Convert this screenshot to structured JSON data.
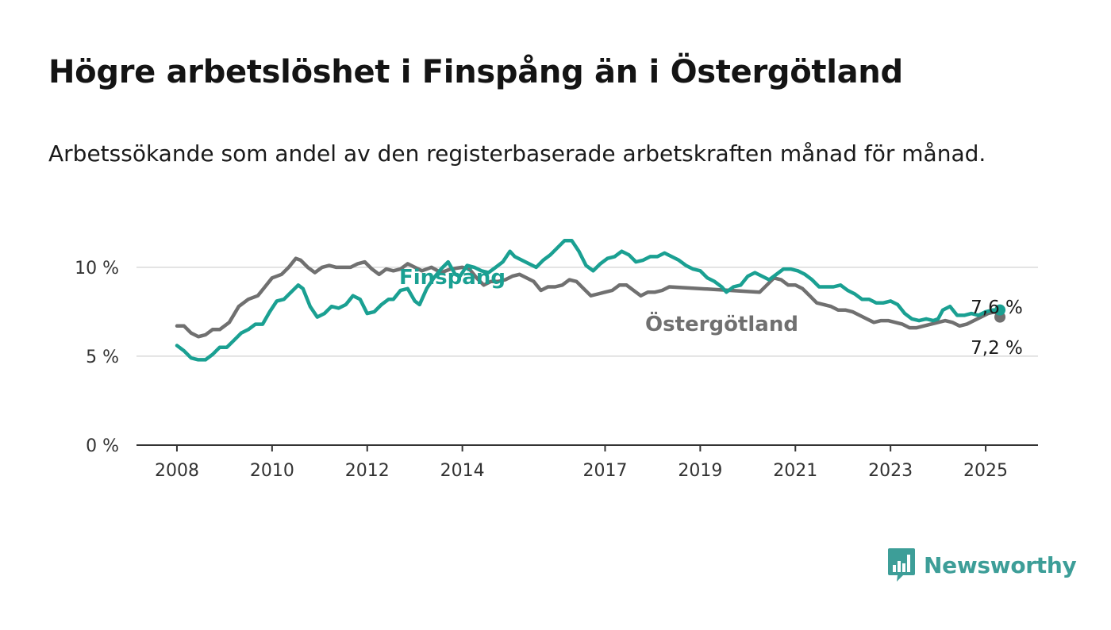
{
  "title": "Högre arbetslöshet i Finspång än i Östergötland",
  "subtitle": "Arbetssökande som andel av den registerbaserade arbetskraften månad för månad.",
  "brand": {
    "name": "Newsworthy",
    "color": "#3d9e98",
    "icon": "bar-chart-speech-bubble-icon"
  },
  "chart_data": {
    "type": "line",
    "yticks": [
      {
        "value": 0,
        "label": "0 %"
      },
      {
        "value": 5,
        "label": "5 %"
      },
      {
        "value": 10,
        "label": "10 %"
      }
    ],
    "xticks": [
      {
        "value": 2008,
        "label": "2008"
      },
      {
        "value": 2010,
        "label": "2010"
      },
      {
        "value": 2012,
        "label": "2012"
      },
      {
        "value": 2014,
        "label": "2014"
      },
      {
        "value": 2017,
        "label": "2017"
      },
      {
        "value": 2019,
        "label": "2019"
      },
      {
        "value": 2021,
        "label": "2021"
      },
      {
        "value": 2023,
        "label": "2023"
      },
      {
        "value": 2025,
        "label": "2025"
      }
    ],
    "xlim": [
      2007.15,
      2026.1
    ],
    "ylim": [
      0,
      11.6
    ],
    "grid": true,
    "series": [
      {
        "name": "Östergötland",
        "color": "#707070",
        "end_label": "7,2 %",
        "points": [
          [
            2008.0,
            6.7
          ],
          [
            2008.15,
            6.7
          ],
          [
            2008.3,
            6.3
          ],
          [
            2008.45,
            6.1
          ],
          [
            2008.6,
            6.2
          ],
          [
            2008.75,
            6.5
          ],
          [
            2008.9,
            6.5
          ],
          [
            2009.1,
            6.9
          ],
          [
            2009.3,
            7.8
          ],
          [
            2009.5,
            8.2
          ],
          [
            2009.7,
            8.4
          ],
          [
            2009.85,
            8.9
          ],
          [
            2010.0,
            9.4
          ],
          [
            2010.2,
            9.6
          ],
          [
            2010.35,
            10.0
          ],
          [
            2010.5,
            10.5
          ],
          [
            2010.6,
            10.4
          ],
          [
            2010.75,
            10.0
          ],
          [
            2010.9,
            9.7
          ],
          [
            2011.05,
            10.0
          ],
          [
            2011.2,
            10.1
          ],
          [
            2011.35,
            10.0
          ],
          [
            2011.5,
            10.0
          ],
          [
            2011.65,
            10.0
          ],
          [
            2011.8,
            10.2
          ],
          [
            2011.95,
            10.3
          ],
          [
            2012.1,
            9.9
          ],
          [
            2012.25,
            9.6
          ],
          [
            2012.4,
            9.9
          ],
          [
            2012.55,
            9.8
          ],
          [
            2012.7,
            9.9
          ],
          [
            2012.85,
            10.2
          ],
          [
            2013.0,
            10.0
          ],
          [
            2013.15,
            9.8
          ],
          [
            2013.35,
            10.0
          ],
          [
            2013.55,
            9.7
          ],
          [
            2013.75,
            9.9
          ],
          [
            2014.0,
            10.0
          ],
          [
            2014.15,
            9.9
          ],
          [
            2014.3,
            9.4
          ],
          [
            2014.45,
            9.0
          ],
          [
            2014.6,
            9.2
          ],
          [
            2014.75,
            9.2
          ],
          [
            2014.9,
            9.3
          ],
          [
            2015.05,
            9.5
          ],
          [
            2015.2,
            9.6
          ],
          [
            2015.35,
            9.4
          ],
          [
            2015.5,
            9.2
          ],
          [
            2015.65,
            8.7
          ],
          [
            2015.8,
            8.9
          ],
          [
            2015.95,
            8.9
          ],
          [
            2016.1,
            9.0
          ],
          [
            2016.25,
            9.3
          ],
          [
            2016.4,
            9.2
          ],
          [
            2016.55,
            8.8
          ],
          [
            2016.7,
            8.4
          ],
          [
            2016.85,
            8.5
          ],
          [
            2017.0,
            8.6
          ],
          [
            2017.15,
            8.7
          ],
          [
            2017.3,
            9.0
          ],
          [
            2017.45,
            9.0
          ],
          [
            2017.6,
            8.7
          ],
          [
            2017.75,
            8.4
          ],
          [
            2017.9,
            8.6
          ],
          [
            2018.05,
            8.6
          ],
          [
            2018.2,
            8.7
          ],
          [
            2018.35,
            8.9
          ],
          [
            2020.25,
            8.6
          ],
          [
            2020.4,
            9.0
          ],
          [
            2020.55,
            9.4
          ],
          [
            2020.7,
            9.3
          ],
          [
            2020.85,
            9.0
          ],
          [
            2021.0,
            9.0
          ],
          [
            2021.15,
            8.8
          ],
          [
            2021.3,
            8.4
          ],
          [
            2021.45,
            8.0
          ],
          [
            2021.6,
            7.9
          ],
          [
            2021.75,
            7.8
          ],
          [
            2021.9,
            7.6
          ],
          [
            2022.05,
            7.6
          ],
          [
            2022.2,
            7.5
          ],
          [
            2022.35,
            7.3
          ],
          [
            2022.5,
            7.1
          ],
          [
            2022.65,
            6.9
          ],
          [
            2022.8,
            7.0
          ],
          [
            2022.95,
            7.0
          ],
          [
            2023.1,
            6.9
          ],
          [
            2023.25,
            6.8
          ],
          [
            2023.4,
            6.6
          ],
          [
            2023.55,
            6.6
          ],
          [
            2023.7,
            6.7
          ],
          [
            2023.85,
            6.8
          ],
          [
            2024.0,
            6.9
          ],
          [
            2024.15,
            7.0
          ],
          [
            2024.3,
            6.9
          ],
          [
            2024.45,
            6.7
          ],
          [
            2024.6,
            6.8
          ],
          [
            2024.75,
            7.0
          ],
          [
            2024.9,
            7.2
          ],
          [
            2025.05,
            7.4
          ],
          [
            2025.2,
            7.5
          ],
          [
            2025.3,
            7.2
          ]
        ]
      },
      {
        "name": "Finspång",
        "color": "#1aa092",
        "end_label": "7,6 %",
        "points": [
          [
            2008.0,
            5.6
          ],
          [
            2008.15,
            5.3
          ],
          [
            2008.3,
            4.9
          ],
          [
            2008.45,
            4.8
          ],
          [
            2008.6,
            4.8
          ],
          [
            2008.75,
            5.1
          ],
          [
            2008.9,
            5.5
          ],
          [
            2009.05,
            5.5
          ],
          [
            2009.2,
            5.9
          ],
          [
            2009.35,
            6.3
          ],
          [
            2009.5,
            6.5
          ],
          [
            2009.65,
            6.8
          ],
          [
            2009.8,
            6.8
          ],
          [
            2009.95,
            7.5
          ],
          [
            2010.1,
            8.1
          ],
          [
            2010.25,
            8.2
          ],
          [
            2010.4,
            8.6
          ],
          [
            2010.55,
            9.0
          ],
          [
            2010.65,
            8.8
          ],
          [
            2010.8,
            7.8
          ],
          [
            2010.95,
            7.2
          ],
          [
            2011.1,
            7.4
          ],
          [
            2011.25,
            7.8
          ],
          [
            2011.4,
            7.7
          ],
          [
            2011.55,
            7.9
          ],
          [
            2011.7,
            8.4
          ],
          [
            2011.85,
            8.2
          ],
          [
            2012.0,
            7.4
          ],
          [
            2012.15,
            7.5
          ],
          [
            2012.3,
            7.9
          ],
          [
            2012.45,
            8.2
          ],
          [
            2012.55,
            8.2
          ],
          [
            2012.7,
            8.7
          ],
          [
            2012.85,
            8.8
          ],
          [
            2013.0,
            8.1
          ],
          [
            2013.1,
            7.9
          ],
          [
            2013.25,
            8.8
          ],
          [
            2013.4,
            9.4
          ],
          [
            2013.55,
            9.9
          ],
          [
            2013.7,
            10.3
          ],
          [
            2013.85,
            9.6
          ],
          [
            2013.95,
            9.5
          ],
          [
            2014.1,
            10.1
          ],
          [
            2014.25,
            10.0
          ],
          [
            2014.4,
            9.8
          ],
          [
            2014.55,
            9.7
          ],
          [
            2014.7,
            10.0
          ],
          [
            2014.85,
            10.3
          ],
          [
            2015.0,
            10.9
          ],
          [
            2015.1,
            10.6
          ],
          [
            2015.25,
            10.4
          ],
          [
            2015.4,
            10.2
          ],
          [
            2015.55,
            10.0
          ],
          [
            2015.7,
            10.4
          ],
          [
            2015.85,
            10.7
          ],
          [
            2016.0,
            11.1
          ],
          [
            2016.15,
            11.5
          ],
          [
            2016.3,
            11.5
          ],
          [
            2016.45,
            10.9
          ],
          [
            2016.6,
            10.1
          ],
          [
            2016.75,
            9.8
          ],
          [
            2016.9,
            10.2
          ],
          [
            2017.05,
            10.5
          ],
          [
            2017.2,
            10.6
          ],
          [
            2017.35,
            10.9
          ],
          [
            2017.5,
            10.7
          ],
          [
            2017.65,
            10.3
          ],
          [
            2017.8,
            10.4
          ],
          [
            2017.95,
            10.6
          ],
          [
            2018.1,
            10.6
          ],
          [
            2018.25,
            10.8
          ],
          [
            2018.4,
            10.6
          ],
          [
            2018.55,
            10.4
          ],
          [
            2018.7,
            10.1
          ],
          [
            2018.85,
            9.9
          ],
          [
            2019.0,
            9.8
          ],
          [
            2019.15,
            9.4
          ],
          [
            2019.3,
            9.2
          ],
          [
            2019.45,
            8.9
          ],
          [
            2019.55,
            8.6
          ],
          [
            2019.7,
            8.9
          ],
          [
            2019.85,
            9.0
          ],
          [
            2020.0,
            9.5
          ],
          [
            2020.15,
            9.7
          ],
          [
            2020.3,
            9.5
          ],
          [
            2020.45,
            9.3
          ],
          [
            2020.6,
            9.6
          ],
          [
            2020.75,
            9.9
          ],
          [
            2020.9,
            9.9
          ],
          [
            2021.05,
            9.8
          ],
          [
            2021.2,
            9.6
          ],
          [
            2021.35,
            9.3
          ],
          [
            2021.5,
            8.9
          ],
          [
            2021.65,
            8.9
          ],
          [
            2021.8,
            8.9
          ],
          [
            2021.95,
            9.0
          ],
          [
            2022.1,
            8.7
          ],
          [
            2022.25,
            8.5
          ],
          [
            2022.4,
            8.2
          ],
          [
            2022.55,
            8.2
          ],
          [
            2022.7,
            8.0
          ],
          [
            2022.85,
            8.0
          ],
          [
            2023.0,
            8.1
          ],
          [
            2023.15,
            7.9
          ],
          [
            2023.3,
            7.4
          ],
          [
            2023.45,
            7.1
          ],
          [
            2023.6,
            7.0
          ],
          [
            2023.75,
            7.1
          ],
          [
            2023.9,
            7.0
          ],
          [
            2024.0,
            7.1
          ],
          [
            2024.1,
            7.6
          ],
          [
            2024.25,
            7.8
          ],
          [
            2024.4,
            7.3
          ],
          [
            2024.55,
            7.3
          ],
          [
            2024.7,
            7.4
          ],
          [
            2024.85,
            7.3
          ],
          [
            2025.0,
            7.5
          ],
          [
            2025.15,
            7.6
          ],
          [
            2025.3,
            7.6
          ]
        ]
      }
    ]
  }
}
